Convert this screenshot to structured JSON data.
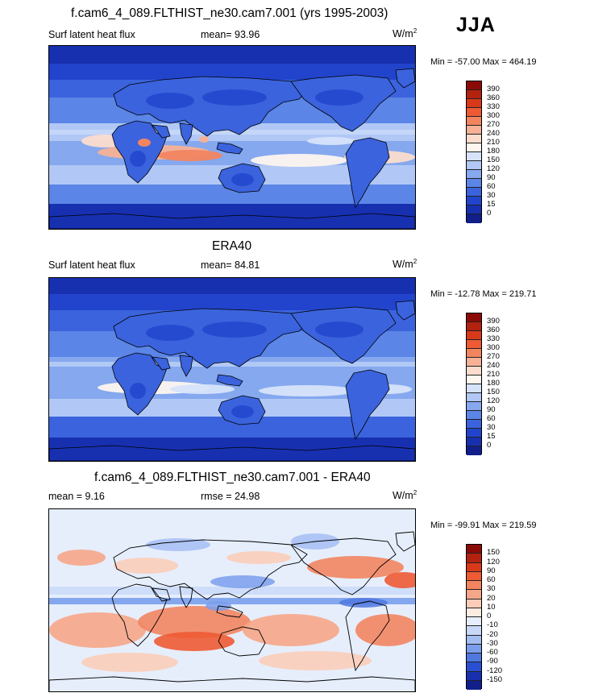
{
  "season": "JJA",
  "panels": [
    {
      "title": "f.cam6_4_089.FLTHIST_ne30.cam7.001 (yrs 1995-2003)",
      "left_label": "Surf latent heat flux",
      "mid_label": "mean=  93.96",
      "units": "W/m",
      "units_sup": "2",
      "minmax": "Min = -57.00 Max = 464.19",
      "palette": "abs",
      "levels": [
        "390",
        "360",
        "330",
        "300",
        "270",
        "240",
        "210",
        "180",
        "150",
        "120",
        "90",
        "60",
        "30",
        "15",
        "0"
      ]
    },
    {
      "title": "ERA40",
      "left_label": "Surf latent heat flux",
      "mid_label": "mean=  84.81",
      "units": "W/m",
      "units_sup": "2",
      "minmax": "Min = -12.78 Max = 219.71",
      "palette": "abs",
      "levels": [
        "390",
        "360",
        "330",
        "300",
        "270",
        "240",
        "210",
        "180",
        "150",
        "120",
        "90",
        "60",
        "30",
        "15",
        "0"
      ]
    },
    {
      "title": "f.cam6_4_089.FLTHIST_ne30.cam7.001 - ERA40",
      "left_label": "mean =   9.16",
      "mid_label": "rmse =  24.98",
      "units": "W/m",
      "units_sup": "2",
      "minmax": "Min = -99.91 Max = 219.59",
      "palette": "diff",
      "levels": [
        "150",
        "120",
        "90",
        "60",
        "30",
        "20",
        "10",
        "0",
        "-10",
        "-20",
        "-30",
        "-60",
        "-90",
        "-120",
        "-150"
      ]
    }
  ],
  "colors": {
    "abs": [
      "#8b0a06",
      "#b3210f",
      "#d9391b",
      "#ee5a34",
      "#f28560",
      "#f6b196",
      "#fbdccd",
      "#fdf6ef",
      "#d6e3fa",
      "#b1c8f6",
      "#85a8ef",
      "#5b85e6",
      "#3b63dd",
      "#2244cc",
      "#1730b0",
      "#101f8a"
    ],
    "diff": [
      "#8b0a06",
      "#b3210f",
      "#d9391b",
      "#ee5a34",
      "#f28560",
      "#f6a688",
      "#fbcdb9",
      "#fdece2",
      "#e6eefc",
      "#c8d8f8",
      "#a4bdf3",
      "#7a9eec",
      "#4f78e0",
      "#2a4fd2",
      "#1830b0",
      "#101f8a"
    ]
  }
}
